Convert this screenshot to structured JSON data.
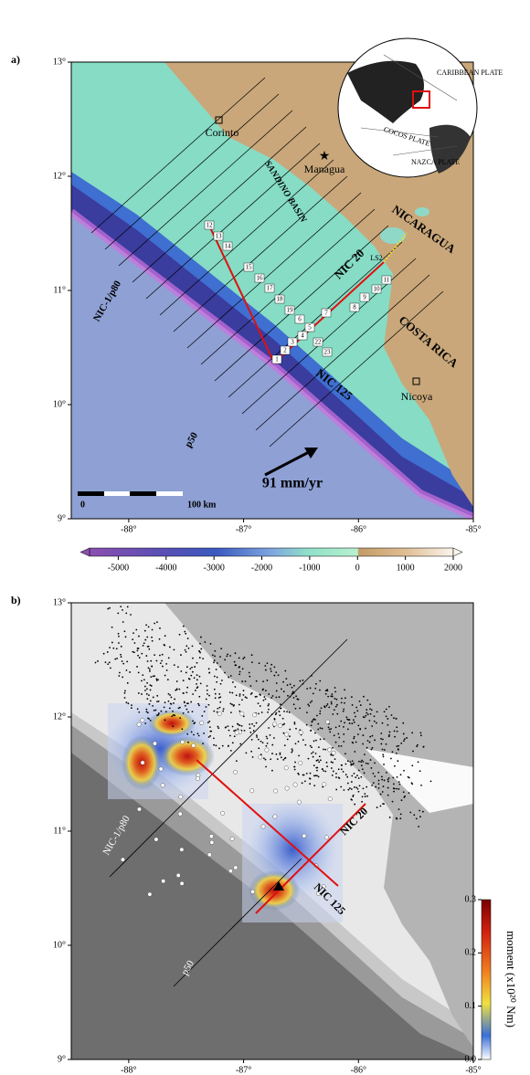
{
  "panel_a": {
    "label": "a)",
    "lon_lim": [
      -88.5,
      -85
    ],
    "lat_lim": [
      9,
      13
    ],
    "lat_ticks": [
      {
        "value": 13,
        "label": "13°"
      },
      {
        "value": 12,
        "label": "12°"
      },
      {
        "value": 11,
        "label": "11°"
      },
      {
        "value": 10,
        "label": "10°"
      },
      {
        "value": 9,
        "label": "9°"
      }
    ],
    "lon_ticks": [
      {
        "value": -88,
        "label": "-88°"
      },
      {
        "value": -87,
        "label": "-87°"
      },
      {
        "value": -86,
        "label": "-86°"
      },
      {
        "value": -85,
        "label": "-85°"
      }
    ],
    "places": [
      "Corinto",
      "Managua",
      "Nicoya"
    ],
    "regions": [
      "SANDINO BASIN",
      "NICARAGUA",
      "COSTA RICA"
    ],
    "profiles": [
      "NIC-1/p80",
      "p50",
      "NIC 20",
      "NIC 125",
      "LS2"
    ],
    "stations": [
      "12",
      "13",
      "14",
      "15",
      "16",
      "17",
      "18",
      "19",
      "11",
      "10",
      "9",
      "8",
      "7",
      "6",
      "5",
      "4",
      "3",
      "2",
      "1",
      "22",
      "23"
    ],
    "velocity": "91 mm/yr",
    "scale_bar": [
      "0",
      "100 km"
    ],
    "inset_plates": [
      "CARIBBEAN PLATE",
      "COCOS PLATE",
      "NAZCA PLATE"
    ],
    "colorbar": {
      "lim": [
        -5600,
        2000
      ],
      "ticks": [
        -5000,
        -4000,
        -3000,
        -2000,
        -1000,
        0,
        1000,
        2000
      ]
    }
  },
  "panel_b": {
    "label": "b)",
    "lon_lim": [
      -88.5,
      -85
    ],
    "lat_lim": [
      9,
      13
    ],
    "lat_ticks": [
      {
        "value": 13,
        "label": "13°"
      },
      {
        "value": 12,
        "label": "12°"
      },
      {
        "value": 11,
        "label": "11°"
      },
      {
        "value": 10,
        "label": "10°"
      },
      {
        "value": 9,
        "label": "9°"
      }
    ],
    "lon_ticks": [
      {
        "value": -88,
        "label": "-88°"
      },
      {
        "value": -87,
        "label": "-87°"
      },
      {
        "value": -86,
        "label": "-86°"
      },
      {
        "value": -85,
        "label": "-85°"
      }
    ],
    "profiles": [
      "NIC-1/p80",
      "p50",
      "NIC 20",
      "NIC 125"
    ],
    "colorbar": {
      "title": "moment (x10²⁰ Nm)",
      "lim": [
        0,
        0.3
      ],
      "ticks": [
        {
          "value": 0,
          "label": "0.0"
        },
        {
          "value": 0.1,
          "label": "0.1"
        },
        {
          "value": 0.2,
          "label": "0.2"
        },
        {
          "value": 0.3,
          "label": "0.3"
        }
      ]
    }
  }
}
